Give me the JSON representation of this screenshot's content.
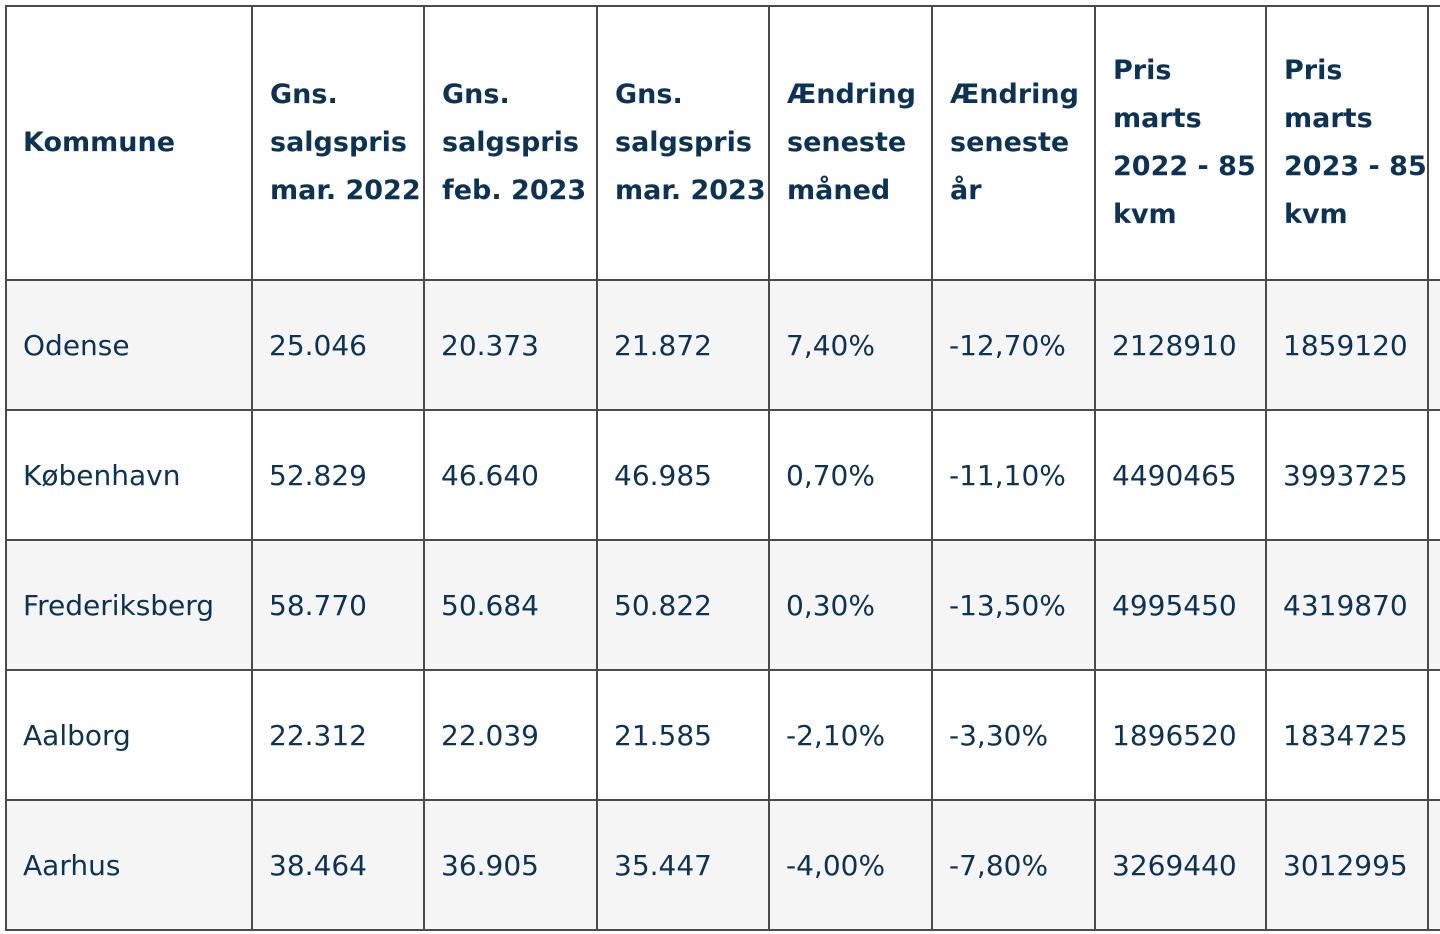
{
  "table": {
    "headers": [
      "Kommune",
      "Gns. salgspris mar. 2022",
      "Gns. salgspris feb. 2023",
      "Gns. salgspris mar. 2023",
      "Ændring seneste måned",
      "Ændring seneste år",
      "Pris marts 2022 - 85 kvm",
      "Pris marts 2023 - 85 kvm"
    ],
    "rows": [
      [
        "Odense",
        "25.046",
        "20.373",
        "21.872",
        "7,40%",
        "-12,70%",
        "2128910",
        "1859120"
      ],
      [
        "København",
        "52.829",
        "46.640",
        "46.985",
        "0,70%",
        "-11,10%",
        "4490465",
        "3993725"
      ],
      [
        "Frederiksberg",
        "58.770",
        "50.684",
        "50.822",
        "0,30%",
        "-13,50%",
        "4995450",
        "4319870"
      ],
      [
        "Aalborg",
        "22.312",
        "22.039",
        "21.585",
        "-2,10%",
        "-3,30%",
        "1896520",
        "1834725"
      ],
      [
        "Aarhus",
        "38.464",
        "36.905",
        "35.447",
        "-4,00%",
        "-7,80%",
        "3269440",
        "3012995"
      ]
    ]
  },
  "colors": {
    "text": "#0c3356",
    "border": "#4a4a4a",
    "row_alt": "#f5f5f5"
  }
}
